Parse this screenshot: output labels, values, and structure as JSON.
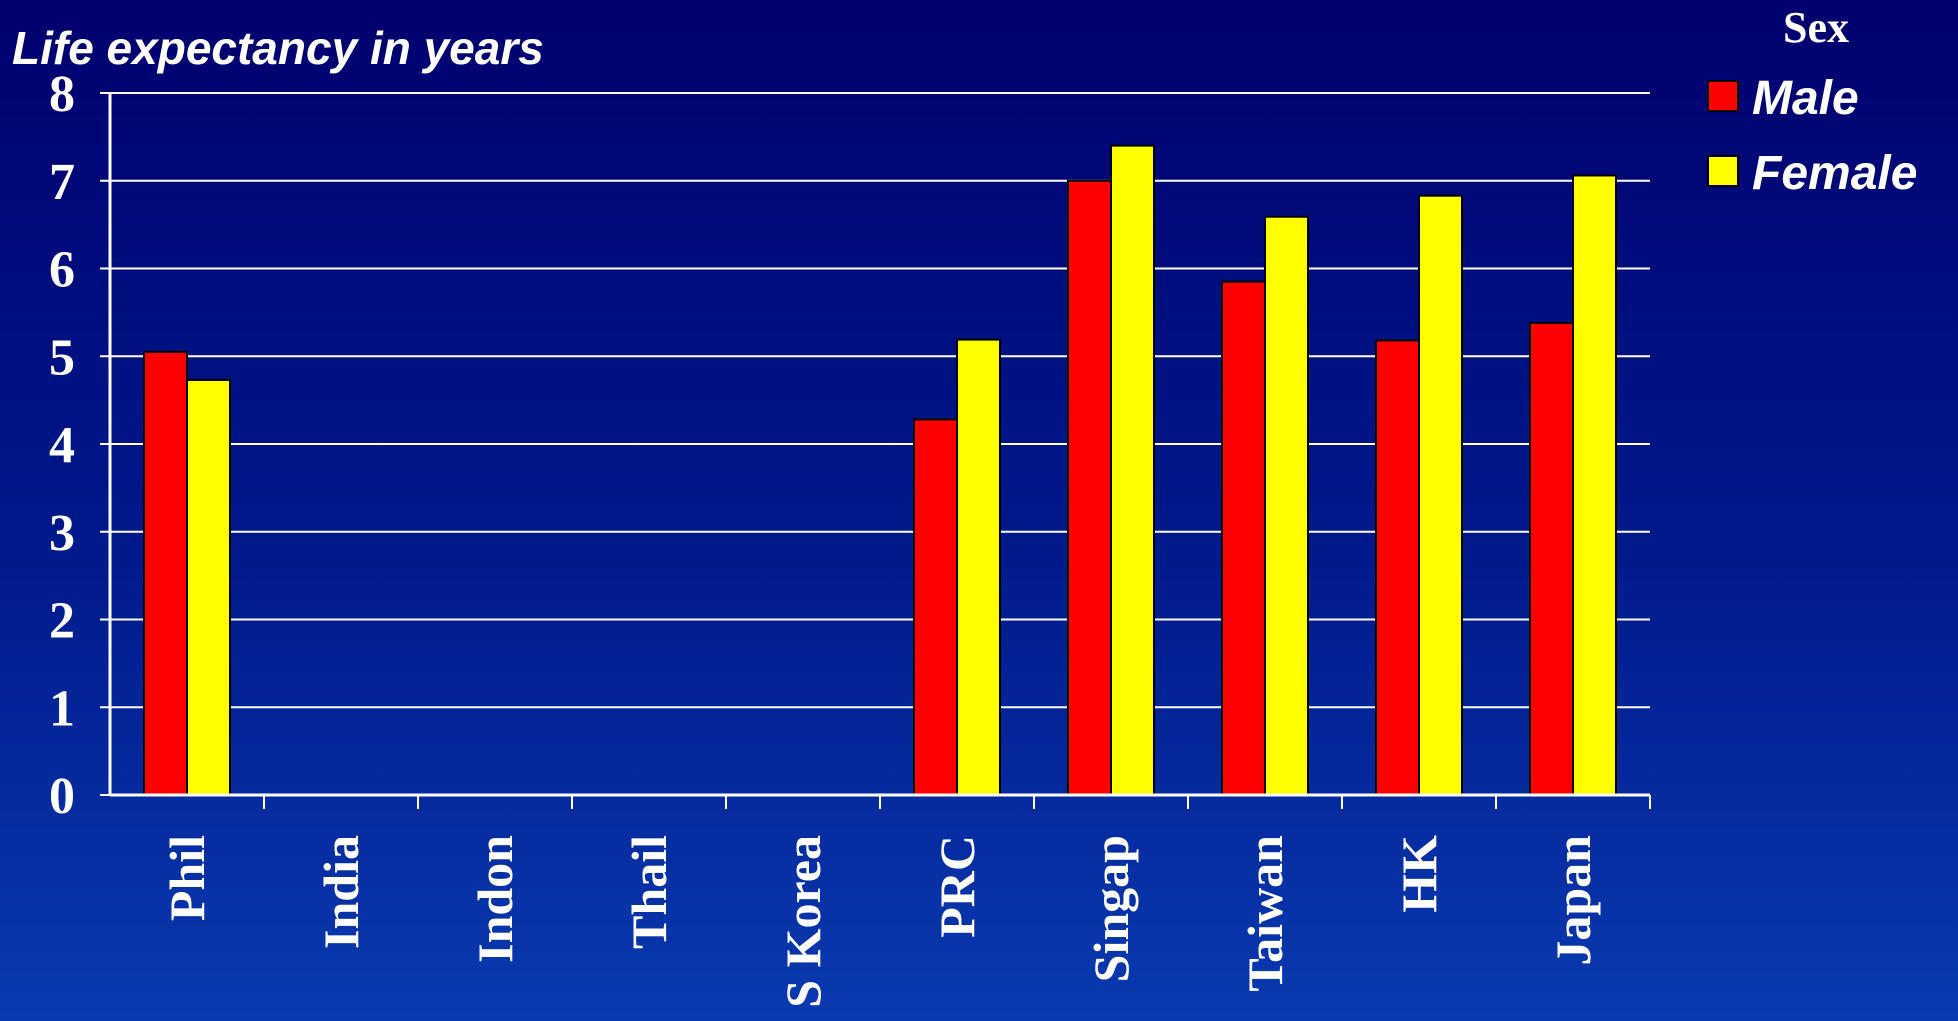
{
  "chart_data": {
    "type": "bar",
    "ylabel": "Life expectancy in years",
    "categories": [
      "Phil",
      "India",
      "Indon",
      "Thail",
      "S Korea",
      "PRC",
      "Singap",
      "Taiwan",
      "HK",
      "Japan"
    ],
    "ylim": [
      0,
      8
    ],
    "yticks": [
      "0",
      "1",
      "2",
      "3",
      "4",
      "5",
      "6",
      "7",
      "8"
    ],
    "grid": true,
    "legend": {
      "title": "Sex",
      "placement": "top-right"
    },
    "series": [
      {
        "name": "Male",
        "color": "#ff0000",
        "values": [
          5.05,
          null,
          null,
          null,
          null,
          4.28,
          7.0,
          5.85,
          5.18,
          5.38
        ]
      },
      {
        "name": "Female",
        "color": "#ffff00",
        "values": [
          4.73,
          null,
          null,
          null,
          null,
          5.19,
          7.4,
          6.59,
          6.83,
          7.06
        ]
      }
    ]
  }
}
